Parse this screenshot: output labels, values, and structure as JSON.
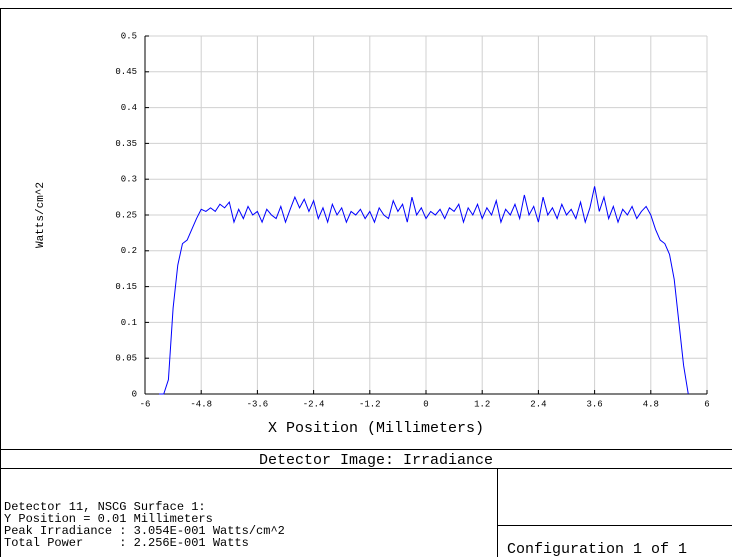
{
  "chart_data": {
    "type": "line",
    "title": "Detector Image: Irradiance",
    "x_label": "X Position (Millimeters)",
    "y_label": "Watts/cm^2",
    "info": [
      "Detector 11, NSCG Surface 1:",
      "Y Position = 0.01 Millimeters",
      "Peak Irradiance : 3.054E-001 Watts/cm^2",
      "Total Power     : 2.256E-001 Watts"
    ],
    "footer": "Configuration 1 of 1",
    "color": "#0000ff",
    "grid": true,
    "xlim": [
      -6,
      6
    ],
    "ylim": [
      0,
      0.5
    ],
    "xticks": [
      -6,
      -4.8,
      -3.6,
      -2.4,
      -1.2,
      0,
      1.2,
      2.4,
      3.6,
      4.8,
      6
    ],
    "yticks": [
      0,
      0.05,
      0.1,
      0.15,
      0.2,
      0.25,
      0.3,
      0.35,
      0.4,
      0.45,
      0.5
    ],
    "x": [
      -5.7,
      -5.6,
      -5.5,
      -5.4,
      -5.3,
      -5.2,
      -5.1,
      -5.0,
      -4.9,
      -4.8,
      -4.7,
      -4.6,
      -4.5,
      -4.4,
      -4.3,
      -4.2,
      -4.1,
      -4.0,
      -3.9,
      -3.8,
      -3.7,
      -3.6,
      -3.5,
      -3.4,
      -3.3,
      -3.2,
      -3.1,
      -3.0,
      -2.9,
      -2.8,
      -2.7,
      -2.6,
      -2.5,
      -2.4,
      -2.3,
      -2.2,
      -2.1,
      -2.0,
      -1.9,
      -1.8,
      -1.7,
      -1.6,
      -1.5,
      -1.4,
      -1.3,
      -1.2,
      -1.1,
      -1.0,
      -0.9,
      -0.8,
      -0.7,
      -0.6,
      -0.5,
      -0.4,
      -0.3,
      -0.2,
      -0.1,
      0.0,
      0.1,
      0.2,
      0.3,
      0.4,
      0.5,
      0.6,
      0.7,
      0.8,
      0.9,
      1.0,
      1.1,
      1.2,
      1.3,
      1.4,
      1.5,
      1.6,
      1.7,
      1.8,
      1.9,
      2.0,
      2.1,
      2.2,
      2.3,
      2.4,
      2.5,
      2.6,
      2.7,
      2.8,
      2.9,
      3.0,
      3.1,
      3.2,
      3.3,
      3.4,
      3.5,
      3.6,
      3.7,
      3.8,
      3.9,
      4.0,
      4.1,
      4.2,
      4.3,
      4.4,
      4.5,
      4.6,
      4.7,
      4.8,
      4.9,
      5.0,
      5.1,
      5.2,
      5.3,
      5.4,
      5.5,
      5.6
    ],
    "values": [
      0,
      0,
      0.02,
      0.12,
      0.18,
      0.21,
      0.215,
      0.23,
      0.245,
      0.258,
      0.255,
      0.26,
      0.255,
      0.265,
      0.26,
      0.268,
      0.24,
      0.258,
      0.245,
      0.262,
      0.25,
      0.255,
      0.24,
      0.258,
      0.25,
      0.245,
      0.262,
      0.24,
      0.258,
      0.275,
      0.26,
      0.272,
      0.255,
      0.27,
      0.245,
      0.26,
      0.24,
      0.265,
      0.25,
      0.26,
      0.24,
      0.255,
      0.25,
      0.258,
      0.245,
      0.255,
      0.24,
      0.26,
      0.25,
      0.245,
      0.27,
      0.255,
      0.265,
      0.24,
      0.275,
      0.25,
      0.26,
      0.245,
      0.255,
      0.25,
      0.258,
      0.245,
      0.26,
      0.255,
      0.265,
      0.24,
      0.26,
      0.25,
      0.265,
      0.245,
      0.26,
      0.25,
      0.27,
      0.24,
      0.258,
      0.25,
      0.265,
      0.245,
      0.278,
      0.25,
      0.262,
      0.24,
      0.275,
      0.25,
      0.26,
      0.245,
      0.265,
      0.25,
      0.258,
      0.245,
      0.268,
      0.24,
      0.26,
      0.29,
      0.255,
      0.275,
      0.245,
      0.262,
      0.24,
      0.258,
      0.25,
      0.262,
      0.245,
      0.255,
      0.262,
      0.25,
      0.23,
      0.215,
      0.21,
      0.195,
      0.16,
      0.1,
      0.04,
      0
    ]
  }
}
